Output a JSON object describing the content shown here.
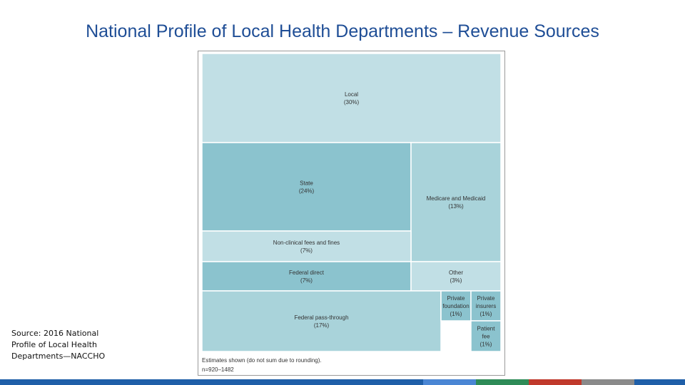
{
  "slide": {
    "title": "National Profile of Local Health Departments – Revenue Sources",
    "source": "Source: 2016 National Profile of Local Health Departments—NACCHO"
  },
  "chart_data": {
    "type": "treemap",
    "title": "",
    "nodes": [
      {
        "id": "local",
        "label": "Local",
        "value_label": "(30%)",
        "value": 30,
        "color": "#c1dfe5"
      },
      {
        "id": "state",
        "label": "State",
        "value_label": "(24%)",
        "value": 24,
        "color": "#8bc3ce"
      },
      {
        "id": "medicare",
        "label": "Medicare and Medicaid",
        "value_label": "(13%)",
        "value": 13,
        "color": "#a9d3da"
      },
      {
        "id": "nonclinical",
        "label": "Non-clinical fees and fines",
        "value_label": "(7%)",
        "value": 7,
        "color": "#c1dfe5"
      },
      {
        "id": "fed-direct",
        "label": "Federal direct",
        "value_label": "(7%)",
        "value": 7,
        "color": "#8bc3ce"
      },
      {
        "id": "other",
        "label": "Other",
        "value_label": "(3%)",
        "value": 3,
        "color": "#c1dfe5"
      },
      {
        "id": "fed-pass",
        "label": "Federal pass-through",
        "value_label": "(17%)",
        "value": 17,
        "color": "#a9d3da"
      },
      {
        "id": "priv-found",
        "label": "Private foundation",
        "value_label": "(1%)",
        "value": 1,
        "color": "#8bc3ce"
      },
      {
        "id": "priv-ins",
        "label": "Private insurers",
        "value_label": "(1%)",
        "value": 1,
        "color": "#8bc3ce"
      },
      {
        "id": "patient",
        "label": "Patient fee",
        "value_label": "(1%)",
        "value": 1,
        "color": "#8bc3ce"
      }
    ],
    "footnote": "Estimates shown (do not sum due to rounding).",
    "sample": "n=920–1482"
  },
  "footer": {
    "colors": [
      "#1f5fa8",
      "#4a86d4",
      "#2e8b57",
      "#c0392b",
      "#8a8a8a",
      "#1f5fa8"
    ]
  }
}
